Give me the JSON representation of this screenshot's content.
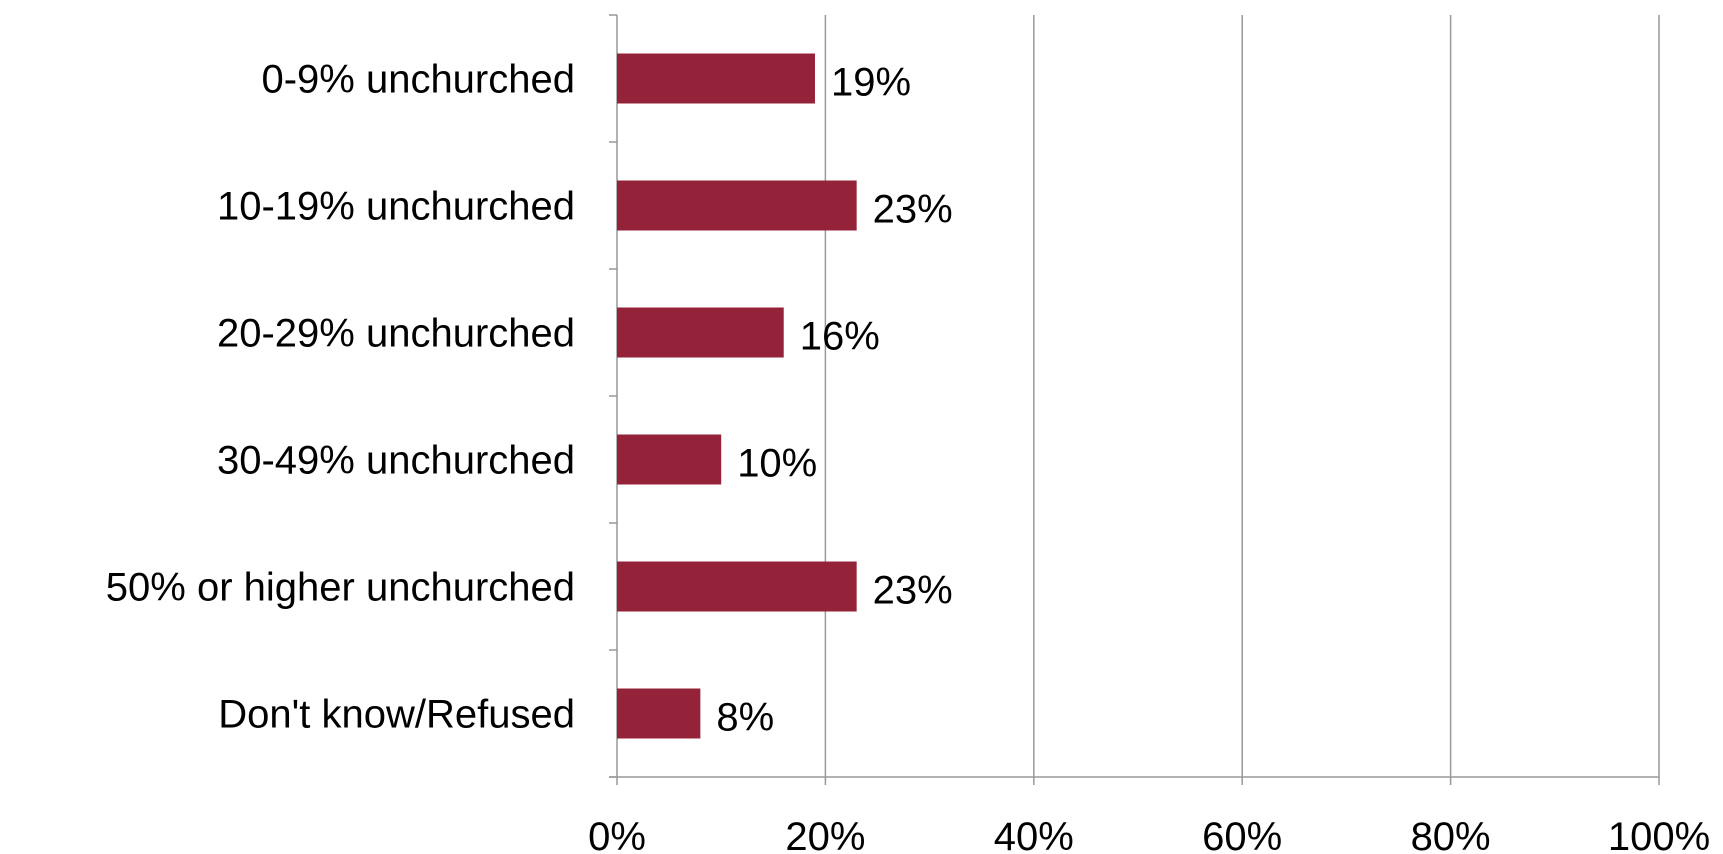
{
  "chart_data": {
    "type": "bar",
    "orientation": "horizontal",
    "categories": [
      "0-9% unchurched",
      "10-19% unchurched",
      "20-29% unchurched",
      "30-49% unchurched",
      "50% or higher unchurched",
      "Don't know/Refused"
    ],
    "values": [
      19,
      23,
      16,
      10,
      23,
      8
    ],
    "data_labels": [
      "19%",
      "23%",
      "16%",
      "10%",
      "23%",
      "8%"
    ],
    "title": "",
    "xlabel": "",
    "ylabel": "",
    "xlim": [
      0,
      100
    ],
    "x_ticks": [
      0,
      20,
      40,
      60,
      80,
      100
    ],
    "x_tick_labels": [
      "0%",
      "20%",
      "40%",
      "60%",
      "80%",
      "100%"
    ],
    "grid": "vertical",
    "legend": "none",
    "colors": {
      "bar": "#94233A",
      "grid": "#999999",
      "axis": "#999999"
    }
  }
}
